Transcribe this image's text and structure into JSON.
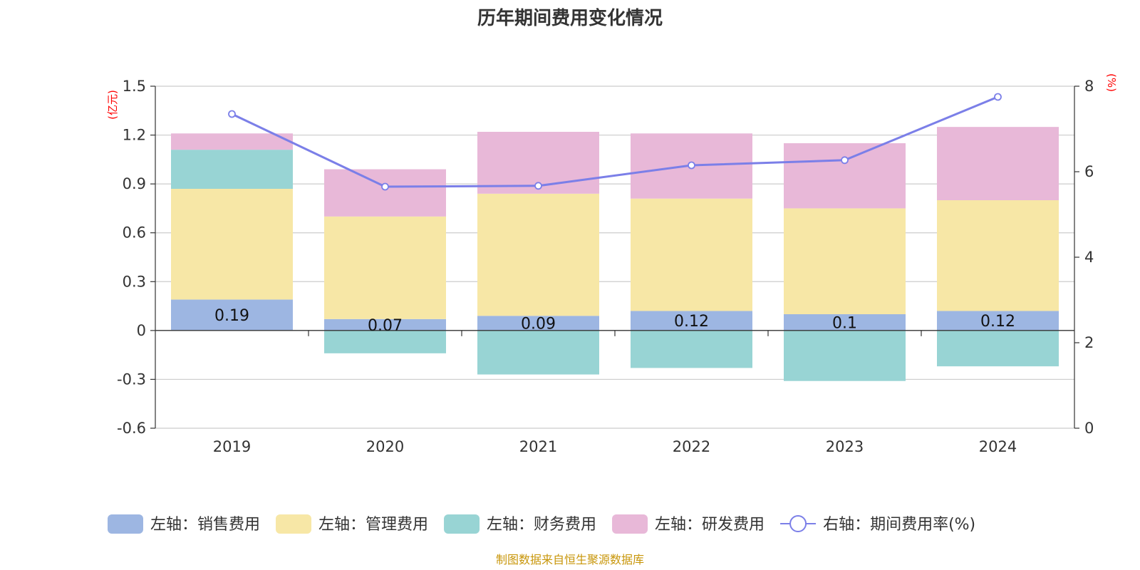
{
  "chart_data": {
    "type": "bar",
    "stacked": true,
    "title": "历年期间费用变化情况",
    "categories": [
      "2019",
      "2020",
      "2021",
      "2022",
      "2023",
      "2024"
    ],
    "left_axis": {
      "unit": "(亿元)",
      "ylim": [
        -0.6,
        1.5
      ],
      "ticks": [
        1.5,
        1.2,
        0.9,
        0.6,
        0.3,
        0,
        -0.3,
        -0.6
      ],
      "tick_labels": [
        "1.5",
        "1.2",
        "0.9",
        "0.6",
        "0.3",
        "0",
        "-0.3",
        "-0.6"
      ]
    },
    "right_axis": {
      "unit": "(%)",
      "ylim": [
        0,
        8
      ],
      "ticks": [
        8,
        6,
        4,
        2,
        0
      ],
      "tick_labels": [
        "8",
        "6",
        "4",
        "2",
        "0"
      ]
    },
    "series": [
      {
        "name": "左轴：销售费用",
        "axis": "left",
        "color": "#9db6e2",
        "values": [
          0.19,
          0.07,
          0.09,
          0.12,
          0.1,
          0.12
        ],
        "labels": [
          "0.19",
          "0.07",
          "0.09",
          "0.12",
          "0.1",
          "0.12"
        ]
      },
      {
        "name": "左轴：管理费用",
        "axis": "left",
        "color": "#f7e7a6",
        "values": [
          0.68,
          0.63,
          0.75,
          0.69,
          0.65,
          0.68
        ]
      },
      {
        "name": "左轴：财务费用",
        "axis": "left",
        "color": "#98d4d4",
        "values": [
          0.24,
          -0.14,
          -0.27,
          -0.23,
          -0.31,
          -0.22
        ]
      },
      {
        "name": "左轴：研发费用",
        "axis": "left",
        "color": "#e8b8d8",
        "values": [
          0.1,
          0.29,
          0.38,
          0.4,
          0.4,
          0.45
        ]
      },
      {
        "name": "右轴：期间费用率(%)",
        "axis": "right",
        "type": "line",
        "color": "#7b7fe8",
        "values": [
          7.35,
          5.65,
          5.67,
          6.15,
          6.27,
          7.75
        ]
      }
    ],
    "source": "制图数据来自恒生聚源数据库"
  }
}
